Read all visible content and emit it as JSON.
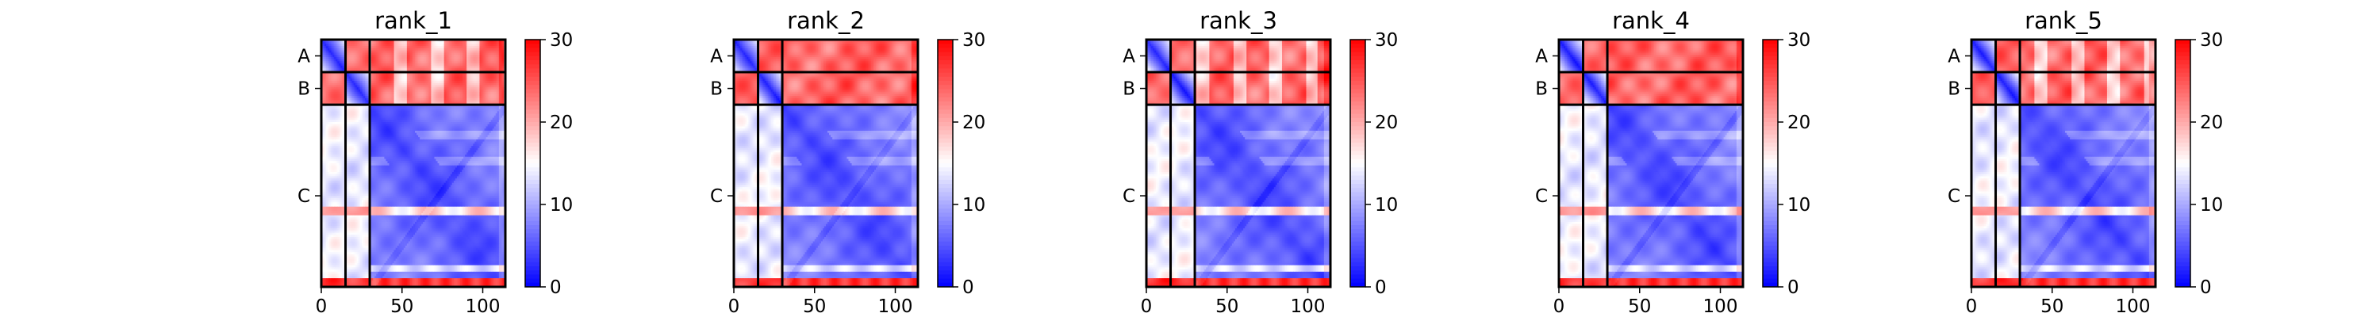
{
  "chart_data": {
    "type": "heatmap",
    "colormap": {
      "name": "bwr",
      "low": "#0000ff",
      "mid": "#ffffff",
      "high": "#ff0000",
      "ticks": [
        "0",
        "10",
        "20",
        "30"
      ],
      "range": [
        0,
        30
      ]
    },
    "axes": {
      "x_ticks": [
        "0",
        "50",
        "100"
      ],
      "x_tick_values": [
        0,
        50,
        100
      ],
      "x_range": [
        0,
        114
      ],
      "y_range": [
        0,
        114
      ]
    },
    "chains": [
      {
        "label": "A",
        "start": 0,
        "end": 15
      },
      {
        "label": "B",
        "start": 15,
        "end": 30
      },
      {
        "label": "C",
        "start": 30,
        "end": 114
      }
    ],
    "panels": [
      {
        "title": "rank_1"
      },
      {
        "title": "rank_2"
      },
      {
        "title": "rank_3"
      },
      {
        "title": "rank_4"
      },
      {
        "title": "rank_5"
      }
    ]
  }
}
